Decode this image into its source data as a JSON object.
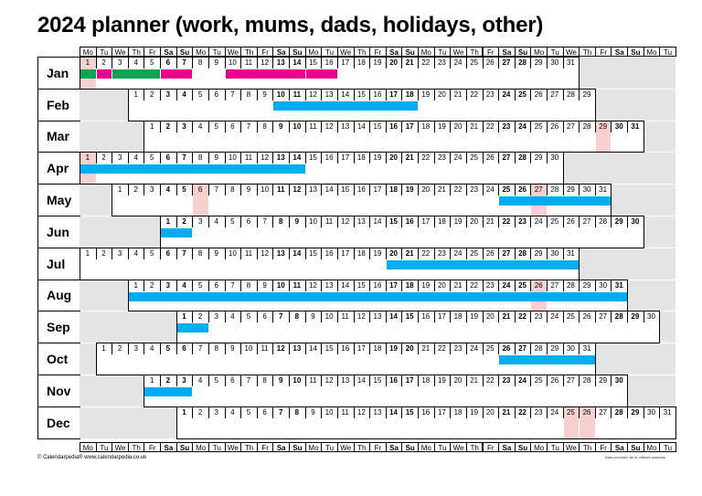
{
  "title": "2024 planner (work, mums, dads, holidays, other)",
  "day_headers": [
    "Mo",
    "Tu",
    "We",
    "Th",
    "Fr",
    "Sa",
    "Su",
    "Mo",
    "Tu",
    "We",
    "Th",
    "Fr",
    "Sa",
    "Su",
    "Mo",
    "Tu",
    "We",
    "Th",
    "Fr",
    "Sa",
    "Su",
    "Mo",
    "Tu",
    "We",
    "Th",
    "Fr",
    "Sa",
    "Su",
    "Mo",
    "Tu",
    "We",
    "Th",
    "Fr",
    "Sa",
    "Su",
    "Mo",
    "Tu"
  ],
  "weekend_flags": [
    0,
    0,
    0,
    0,
    0,
    1,
    1,
    0,
    0,
    0,
    0,
    0,
    1,
    1,
    0,
    0,
    0,
    0,
    0,
    1,
    1,
    0,
    0,
    0,
    0,
    0,
    1,
    1,
    0,
    0,
    0,
    0,
    0,
    1,
    1,
    0,
    0
  ],
  "colors": {
    "blue": "#00aeef",
    "green": "#00a651",
    "magenta": "#ec008c",
    "pink": "#f9d0d0",
    "grey": "#e4e4e4"
  },
  "months": [
    {
      "label": "Jan",
      "start": 0,
      "days": 31,
      "pink": [
        1
      ],
      "bars": [
        [
          "green",
          1,
          1
        ],
        [
          "magenta",
          2,
          2
        ],
        [
          "green",
          3,
          5
        ],
        [
          "magenta",
          6,
          7
        ],
        [
          "magenta",
          10,
          14
        ],
        [
          "magenta",
          15,
          16
        ]
      ]
    },
    {
      "label": "Feb",
      "start": 3,
      "days": 29,
      "pink": [],
      "bars": [
        [
          "blue",
          10,
          18
        ]
      ]
    },
    {
      "label": "Mar",
      "start": 4,
      "days": 31,
      "pink": [
        29
      ],
      "bars": []
    },
    {
      "label": "Apr",
      "start": 0,
      "days": 30,
      "pink": [
        1
      ],
      "bars": [
        [
          "blue",
          1,
          14
        ]
      ]
    },
    {
      "label": "May",
      "start": 2,
      "days": 31,
      "pink": [
        6,
        27
      ],
      "bars": [
        [
          "blue",
          25,
          31
        ]
      ]
    },
    {
      "label": "Jun",
      "start": 5,
      "days": 30,
      "pink": [],
      "bars": [
        [
          "blue",
          1,
          2
        ]
      ]
    },
    {
      "label": "Jul",
      "start": 0,
      "days": 31,
      "pink": [],
      "bars": [
        [
          "blue",
          20,
          31
        ]
      ]
    },
    {
      "label": "Aug",
      "start": 3,
      "days": 31,
      "pink": [
        26
      ],
      "bars": [
        [
          "blue",
          1,
          31
        ]
      ]
    },
    {
      "label": "Sep",
      "start": 6,
      "days": 30,
      "pink": [],
      "bars": [
        [
          "blue",
          1,
          2
        ]
      ]
    },
    {
      "label": "Oct",
      "start": 1,
      "days": 31,
      "pink": [],
      "bars": [
        [
          "blue",
          26,
          31
        ]
      ]
    },
    {
      "label": "Nov",
      "start": 4,
      "days": 30,
      "pink": [],
      "bars": [
        [
          "blue",
          1,
          3
        ]
      ]
    },
    {
      "label": "Dec",
      "start": 6,
      "days": 31,
      "pink": [
        25,
        26
      ],
      "bars": []
    }
  ],
  "footer": {
    "left": "© Calendarpedia®   www.calendarpedia.co.uk",
    "right": "Data provided 'as is' without warranty"
  }
}
